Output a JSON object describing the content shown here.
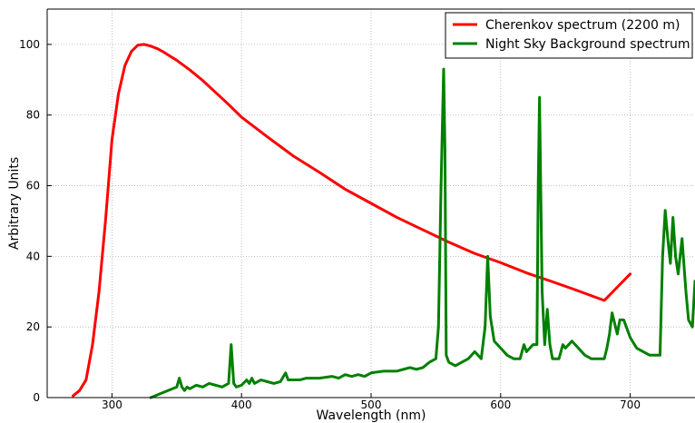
{
  "chart_data": {
    "type": "line",
    "title": "",
    "xlabel": "Wavelength (nm)",
    "ylabel": "Arbitrary Units",
    "xlim": [
      250,
      750
    ],
    "ylim": [
      0,
      110
    ],
    "x_ticks": [
      300,
      400,
      500,
      600,
      700
    ],
    "y_ticks": [
      0,
      20,
      40,
      60,
      80,
      100
    ],
    "grid": true,
    "legend_position": "top-right",
    "series": [
      {
        "name": "Cherenkov spectrum (2200 m)",
        "color": "#ff0000",
        "x": [
          270,
          275,
          280,
          285,
          290,
          295,
          300,
          305,
          310,
          315,
          320,
          325,
          330,
          335,
          340,
          350,
          360,
          370,
          380,
          390,
          400,
          420,
          440,
          460,
          480,
          500,
          520,
          540,
          560,
          580,
          600,
          620,
          640,
          660,
          680,
          700
        ],
        "y": [
          0.5,
          2,
          5,
          15,
          30,
          50,
          73,
          86,
          94,
          98,
          99.8,
          100,
          99.5,
          98.8,
          97.8,
          95.5,
          92.8,
          89.8,
          86.4,
          83,
          79.4,
          73.8,
          68.4,
          63.8,
          59,
          55,
          51,
          47.5,
          44,
          40.8,
          38.2,
          35.3,
          32.8,
          30.2,
          27.5,
          35
        ]
      },
      {
        "name": "Night Sky Background spectrum",
        "color": "#008000",
        "x": [
          330,
          340,
          350,
          352,
          354,
          356,
          358,
          360,
          365,
          370,
          375,
          380,
          385,
          390,
          392,
          394,
          396,
          400,
          404,
          406,
          408,
          410,
          415,
          420,
          425,
          430,
          434,
          436,
          440,
          445,
          450,
          460,
          470,
          475,
          480,
          485,
          490,
          495,
          500,
          510,
          520,
          525,
          530,
          535,
          540,
          545,
          550,
          552,
          554,
          556,
          557,
          558,
          560,
          565,
          570,
          575,
          580,
          585,
          588,
          590,
          592,
          595,
          600,
          605,
          610,
          615,
          618,
          620,
          625,
          628,
          629,
          630,
          632,
          634,
          636,
          638,
          640,
          645,
          648,
          650,
          655,
          660,
          665,
          670,
          675,
          680,
          682,
          684,
          686,
          688,
          690,
          692,
          695,
          700,
          705,
          710,
          715,
          720,
          723,
          725,
          727,
          729,
          731,
          733,
          735,
          737,
          740,
          743,
          745,
          748,
          750
        ],
        "y": [
          0,
          1.5,
          3,
          5.5,
          3,
          2,
          3,
          2.5,
          3.5,
          3,
          4,
          3.5,
          3,
          4,
          15,
          4,
          3,
          3.5,
          5,
          4,
          5.5,
          4,
          5,
          4.5,
          4,
          4.5,
          7,
          5,
          5,
          5,
          5.5,
          5.5,
          6,
          5.5,
          6.5,
          6,
          6.5,
          6,
          7,
          7.5,
          7.5,
          8,
          8.5,
          8,
          8.5,
          10,
          11,
          20,
          60,
          93,
          70,
          12,
          10,
          9,
          10,
          11,
          13,
          11,
          20,
          40,
          23,
          16,
          14,
          12,
          11,
          11,
          15,
          13,
          15,
          15,
          60,
          85,
          30,
          15,
          25,
          15,
          11,
          11,
          15,
          14,
          16,
          14,
          12,
          11,
          11,
          11,
          14,
          18,
          24,
          21,
          18,
          22,
          22,
          17,
          14,
          13,
          12,
          12,
          12,
          40,
          53,
          45,
          38,
          51,
          40,
          35,
          45,
          30,
          22,
          20,
          33
        ]
      }
    ]
  }
}
